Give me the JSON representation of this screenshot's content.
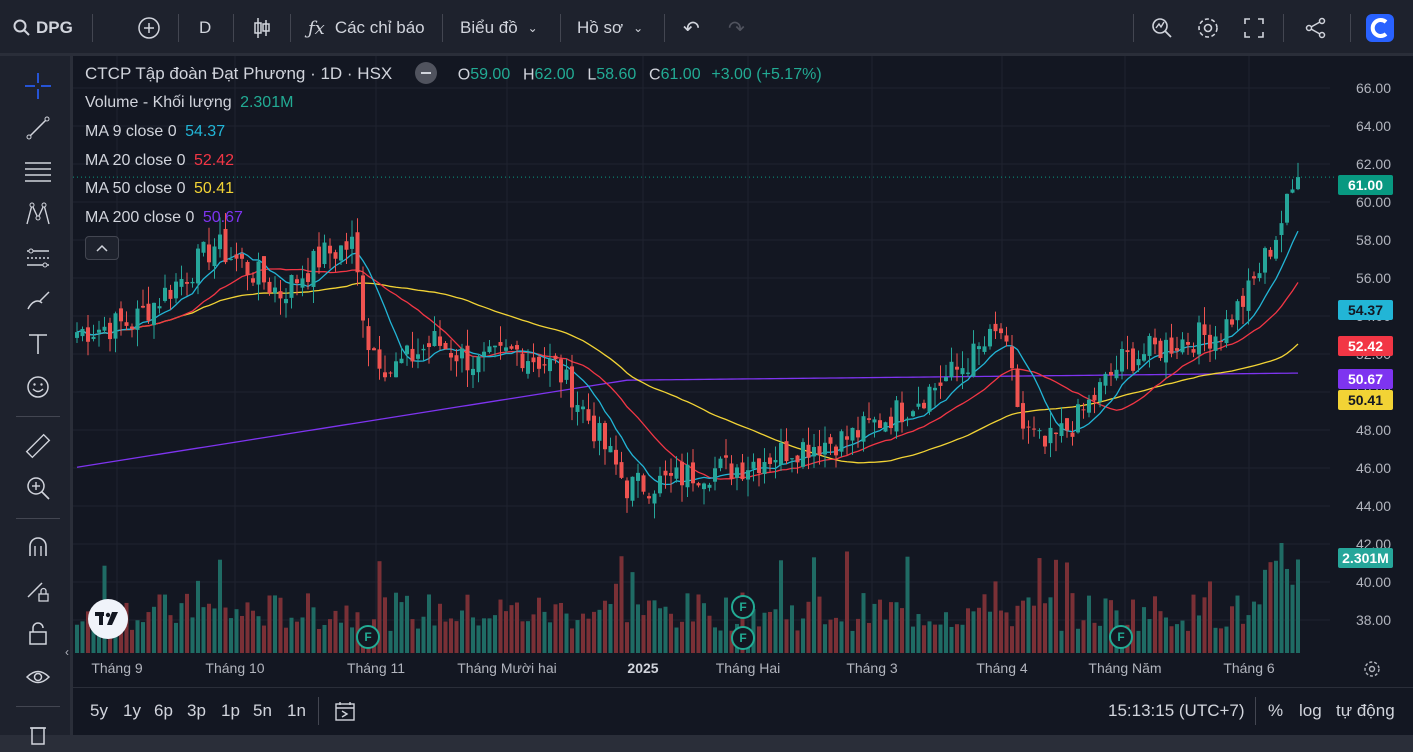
{
  "toolbar": {
    "symbol": "DPG",
    "interval": "D",
    "indicators_label": "Các chỉ báo",
    "chart_label": "Biểu đồ",
    "profile_label": "Hồ sơ"
  },
  "legend": {
    "title": "CTCP Tập đoàn Đạt Phương · 1D · HSX",
    "o_label": "O",
    "o_value": "59.00",
    "h_label": "H",
    "h_value": "62.00",
    "l_label": "L",
    "l_value": "58.60",
    "c_label": "C",
    "c_value": "61.00",
    "change": "+3.00 (+5.17%)",
    "volume_label": "Volume - Khối lượng",
    "volume_value": "2.301M",
    "ma9_label": "MA 9 close 0",
    "ma9_value": "54.37",
    "ma20_label": "MA 20 close 0",
    "ma20_value": "52.42",
    "ma50_label": "MA 50 close 0",
    "ma50_value": "50.41",
    "ma200_label": "MA 200 close 0",
    "ma200_value": "50.67",
    "collapse_icon": "chevron-up-icon"
  },
  "colors": {
    "up": "#26a69a",
    "down": "#ef5350",
    "ma9": "#22b5d6",
    "ma20": "#f23645",
    "ma50": "#f2d335",
    "ma200": "#7e34f0",
    "price_tag": "#089981",
    "volume_tag": "#26a69a"
  },
  "price_scale": [
    "66.00",
    "64.00",
    "62.00",
    "60.00",
    "58.00",
    "56.00",
    "54.00",
    "52.00",
    "50.00",
    "48.00",
    "46.00",
    "44.00",
    "42.00",
    "40.00",
    "38.00"
  ],
  "price_tags": {
    "last": "61.00",
    "ma9": "54.37",
    "ma20": "52.42",
    "ma200": "50.67",
    "ma50": "50.41",
    "volume": "2.301M"
  },
  "time_axis": [
    "Tháng 9",
    "Tháng 10",
    "Tháng 11",
    "Tháng Mười hai",
    "2025",
    "Tháng Hai",
    "Tháng 3",
    "Tháng 4",
    "Tháng Năm",
    "Tháng 6"
  ],
  "event_marker": "F",
  "bottom": {
    "ranges": [
      "5y",
      "1y",
      "6p",
      "3p",
      "1p",
      "5n",
      "1n"
    ],
    "time": "15:13:15 (UTC+7)",
    "percent": "%",
    "log": "log",
    "auto": "tự động"
  },
  "chart_data": {
    "type": "candlestick",
    "title": "CTCP Tập đoàn Đạt Phương · 1D · HSX",
    "ylim": [
      36.5,
      67
    ],
    "anchors_close": [
      [
        0,
        53
      ],
      [
        10,
        53.5
      ],
      [
        20,
        56
      ],
      [
        25,
        57.5
      ],
      [
        30,
        56.5
      ],
      [
        37,
        55
      ],
      [
        45,
        57
      ],
      [
        50,
        57.5
      ],
      [
        53,
        52.5
      ],
      [
        57,
        51
      ],
      [
        65,
        52.5
      ],
      [
        73,
        51.3
      ],
      [
        80,
        52
      ],
      [
        87,
        51.2
      ],
      [
        92,
        49
      ],
      [
        100,
        45
      ],
      [
        108,
        45.3
      ],
      [
        113,
        45.8
      ],
      [
        120,
        46
      ],
      [
        130,
        47
      ],
      [
        140,
        47.5
      ],
      [
        150,
        49
      ],
      [
        160,
        51
      ],
      [
        168,
        53
      ],
      [
        172,
        48
      ],
      [
        176,
        47
      ],
      [
        182,
        48.5
      ],
      [
        190,
        51.5
      ],
      [
        200,
        52.5
      ],
      [
        208,
        53
      ],
      [
        213,
        55
      ],
      [
        218,
        58
      ],
      [
        222,
        61
      ]
    ],
    "volume_note": "relative volume bars in lower pane; last bar 2.301M",
    "last_close": 61.0,
    "ma_last": {
      "ma9": 54.37,
      "ma20": 52.42,
      "ma50": 50.41,
      "ma200": 50.67
    }
  }
}
